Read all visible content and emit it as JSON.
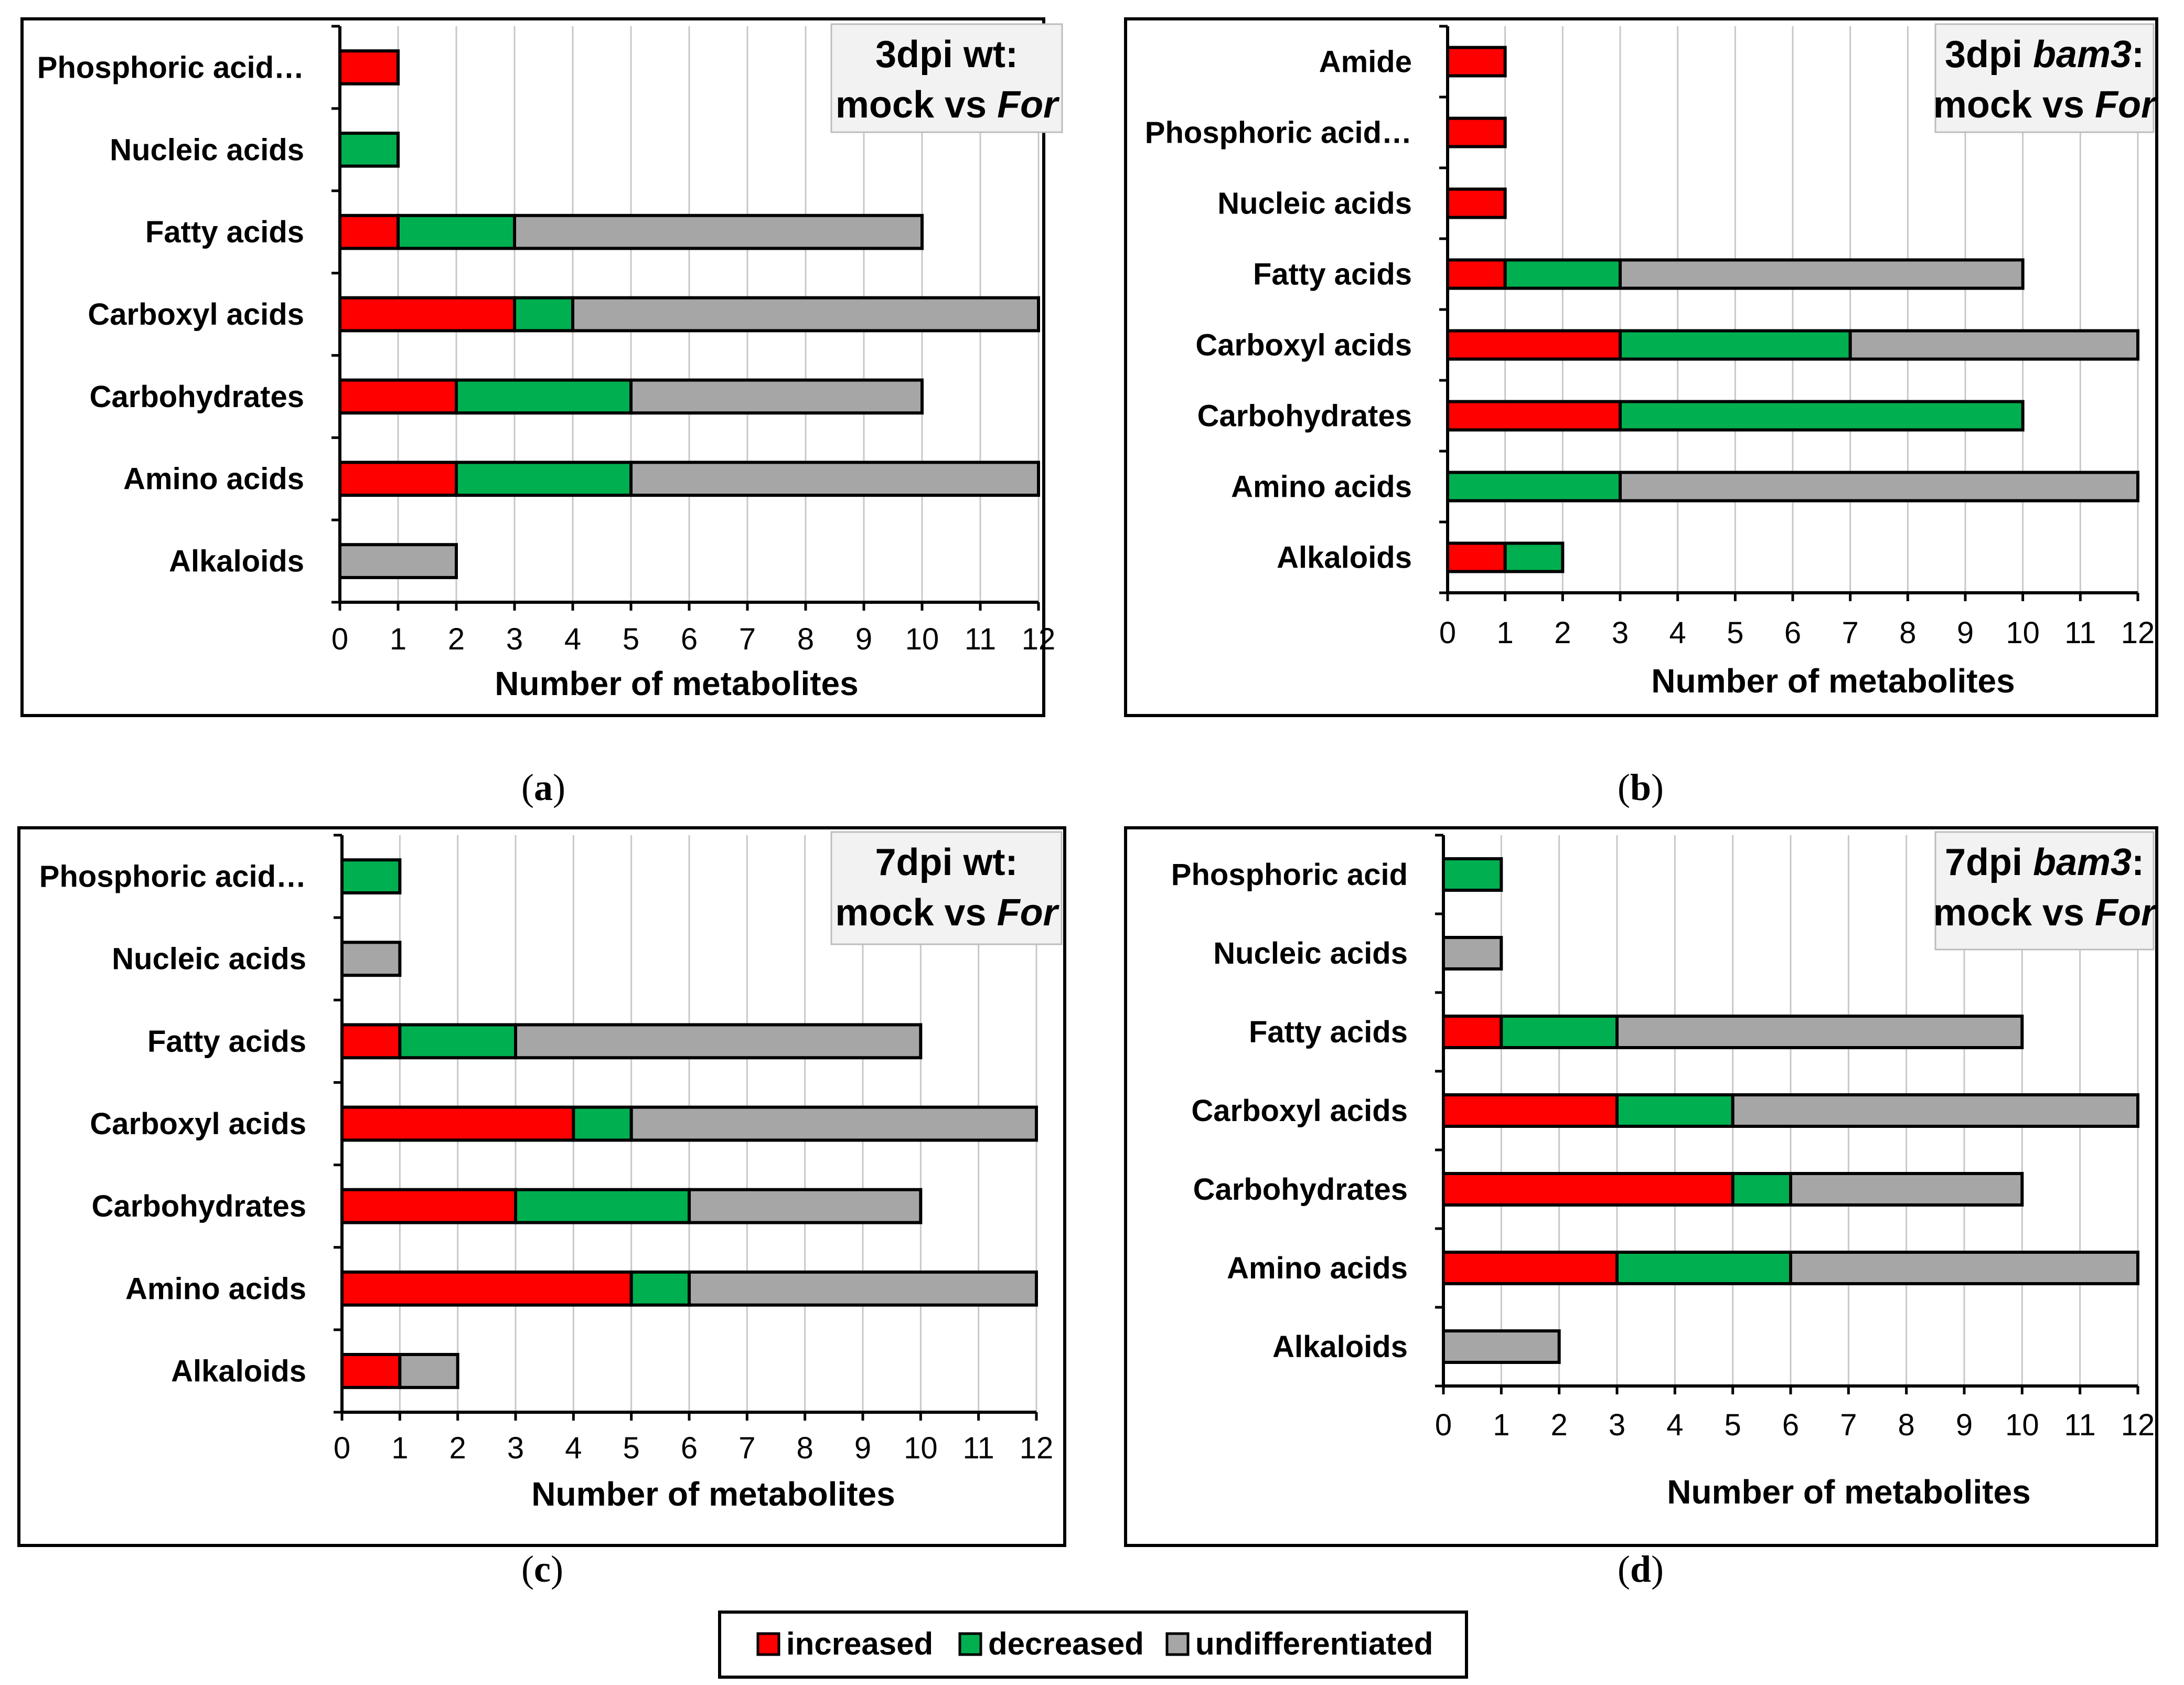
{
  "colors": {
    "increased": "#ff0000",
    "decreased": "#00b050",
    "undifferentiated": "#a6a6a6"
  },
  "legend": {
    "items": [
      {
        "key": "increased",
        "label": "increased"
      },
      {
        "key": "decreased",
        "label": "decreased"
      },
      {
        "key": "undifferentiated",
        "label": "undifferentiated"
      }
    ]
  },
  "chart_data": [
    {
      "type": "bar",
      "orientation": "horizontal",
      "stacked": true,
      "panel_letter": "a",
      "title_parts": {
        "line1_normal": "3dpi wt:",
        "line1_italic": "",
        "line1_suffix": "",
        "line2_normal": "mock vs ",
        "line2_italic": "For"
      },
      "xlabel": "Number of metabolites",
      "xlim": [
        0,
        12
      ],
      "xticks": [
        0,
        1,
        2,
        3,
        4,
        5,
        6,
        7,
        8,
        9,
        10,
        11,
        12
      ],
      "grid": true,
      "categories": [
        "Phosphoric acid…",
        "Nucleic acids",
        "Fatty acids",
        "Carboxyl acids",
        "Carbohydrates",
        "Amino acids",
        "Alkaloids"
      ],
      "series": [
        {
          "name": "increased",
          "values": [
            1,
            0,
            1,
            3,
            2,
            2,
            0
          ]
        },
        {
          "name": "decreased",
          "values": [
            0,
            1,
            2,
            1,
            3,
            3,
            0
          ]
        },
        {
          "name": "undifferentiated",
          "values": [
            0,
            0,
            7,
            8,
            5,
            7,
            2
          ]
        }
      ]
    },
    {
      "type": "bar",
      "orientation": "horizontal",
      "stacked": true,
      "panel_letter": "b",
      "title_parts": {
        "line1_normal": "3dpi ",
        "line1_italic": "bam3",
        "line1_suffix": ":",
        "line2_normal": "mock vs ",
        "line2_italic": "For"
      },
      "xlabel": "Number of metabolites",
      "xlim": [
        0,
        12
      ],
      "xticks": [
        0,
        1,
        2,
        3,
        4,
        5,
        6,
        7,
        8,
        9,
        10,
        11,
        12
      ],
      "grid": true,
      "categories": [
        "Amide",
        "Phosphoric acid…",
        "Nucleic acids",
        "Fatty acids",
        "Carboxyl acids",
        "Carbohydrates",
        "Amino acids",
        "Alkaloids"
      ],
      "series": [
        {
          "name": "increased",
          "values": [
            1,
            1,
            1,
            1,
            3,
            3,
            0,
            1
          ]
        },
        {
          "name": "decreased",
          "values": [
            0,
            0,
            0,
            2,
            4,
            7,
            3,
            1
          ]
        },
        {
          "name": "undifferentiated",
          "values": [
            0,
            0,
            0,
            7,
            5,
            0,
            9,
            0
          ]
        }
      ]
    },
    {
      "type": "bar",
      "orientation": "horizontal",
      "stacked": true,
      "panel_letter": "c",
      "title_parts": {
        "line1_normal": "7dpi wt:",
        "line1_italic": "",
        "line1_suffix": "",
        "line2_normal": "mock vs ",
        "line2_italic": "For"
      },
      "xlabel": "Number of metabolites",
      "xlim": [
        0,
        12
      ],
      "xticks": [
        0,
        1,
        2,
        3,
        4,
        5,
        6,
        7,
        8,
        9,
        10,
        11,
        12
      ],
      "grid": true,
      "categories": [
        "Phosphoric acid…",
        "Nucleic acids",
        "Fatty acids",
        "Carboxyl acids",
        "Carbohydrates",
        "Amino acids",
        "Alkaloids"
      ],
      "series": [
        {
          "name": "increased",
          "values": [
            0,
            0,
            1,
            4,
            3,
            5,
            1
          ]
        },
        {
          "name": "decreased",
          "values": [
            1,
            0,
            2,
            1,
            3,
            1,
            0
          ]
        },
        {
          "name": "undifferentiated",
          "values": [
            0,
            1,
            7,
            7,
            4,
            6,
            1
          ]
        }
      ]
    },
    {
      "type": "bar",
      "orientation": "horizontal",
      "stacked": true,
      "panel_letter": "d",
      "title_parts": {
        "line1_normal": "7dpi ",
        "line1_italic": "bam3",
        "line1_suffix": ":",
        "line2_normal": "mock vs ",
        "line2_italic": "For"
      },
      "xlabel": "Number of metabolites",
      "xlim": [
        0,
        12
      ],
      "xticks": [
        0,
        1,
        2,
        3,
        4,
        5,
        6,
        7,
        8,
        9,
        10,
        11,
        12
      ],
      "grid": true,
      "categories": [
        "Phosphoric acid",
        "Nucleic acids",
        "Fatty acids",
        "Carboxyl acids",
        "Carbohydrates",
        "Amino acids",
        "Alkaloids"
      ],
      "series": [
        {
          "name": "increased",
          "values": [
            0,
            0,
            1,
            3,
            5,
            3,
            0
          ]
        },
        {
          "name": "decreased",
          "values": [
            1,
            0,
            2,
            2,
            1,
            3,
            0
          ]
        },
        {
          "name": "undifferentiated",
          "values": [
            0,
            1,
            7,
            7,
            4,
            6,
            2
          ]
        }
      ]
    }
  ]
}
